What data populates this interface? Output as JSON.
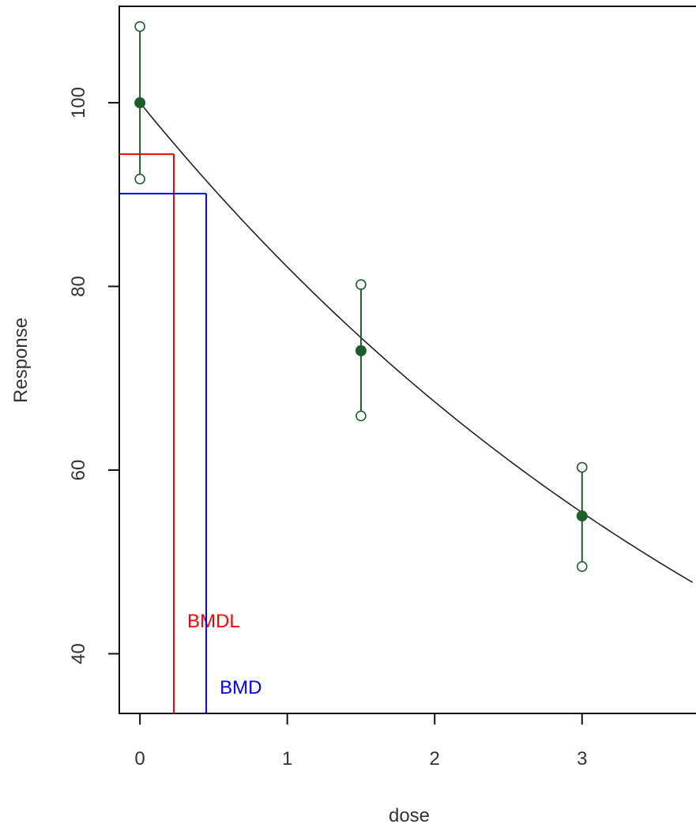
{
  "chart_data": {
    "type": "line",
    "title": "",
    "xlabel": "dose",
    "ylabel": "Response",
    "xlim": [
      -0.14,
      3.8
    ],
    "ylim": [
      33.5,
      110.5
    ],
    "x_ticks": [
      0,
      1,
      2,
      3
    ],
    "y_ticks": [
      40,
      60,
      80,
      100
    ],
    "x_tick_labels": [
      "0",
      "1",
      "2",
      "3"
    ],
    "y_tick_labels": [
      "40",
      "60",
      "80",
      "100"
    ],
    "grid": false,
    "observations": [
      {
        "x": 0,
        "mean": 100.0,
        "lower": 91.7,
        "upper": 108.3
      },
      {
        "x": 1.5,
        "mean": 73.0,
        "lower": 65.9,
        "upper": 80.2
      },
      {
        "x": 3,
        "mean": 55.0,
        "lower": 49.5,
        "upper": 60.3
      }
    ],
    "fitted_curve": {
      "model": "exponential",
      "x_start": 0,
      "x_end": 3.75,
      "y_at_zero": 100.0,
      "rate": 0.197
    },
    "benchmarks": [
      {
        "label": "BMDL",
        "x": 0.23,
        "y": 94.4,
        "color": "#ff0000"
      },
      {
        "label": "BMD",
        "x": 0.45,
        "y": 90.1,
        "color": "#0000ff"
      }
    ],
    "colors": {
      "data": "#1e5e2a",
      "curve": "#222222",
      "axis": "#111111"
    }
  }
}
